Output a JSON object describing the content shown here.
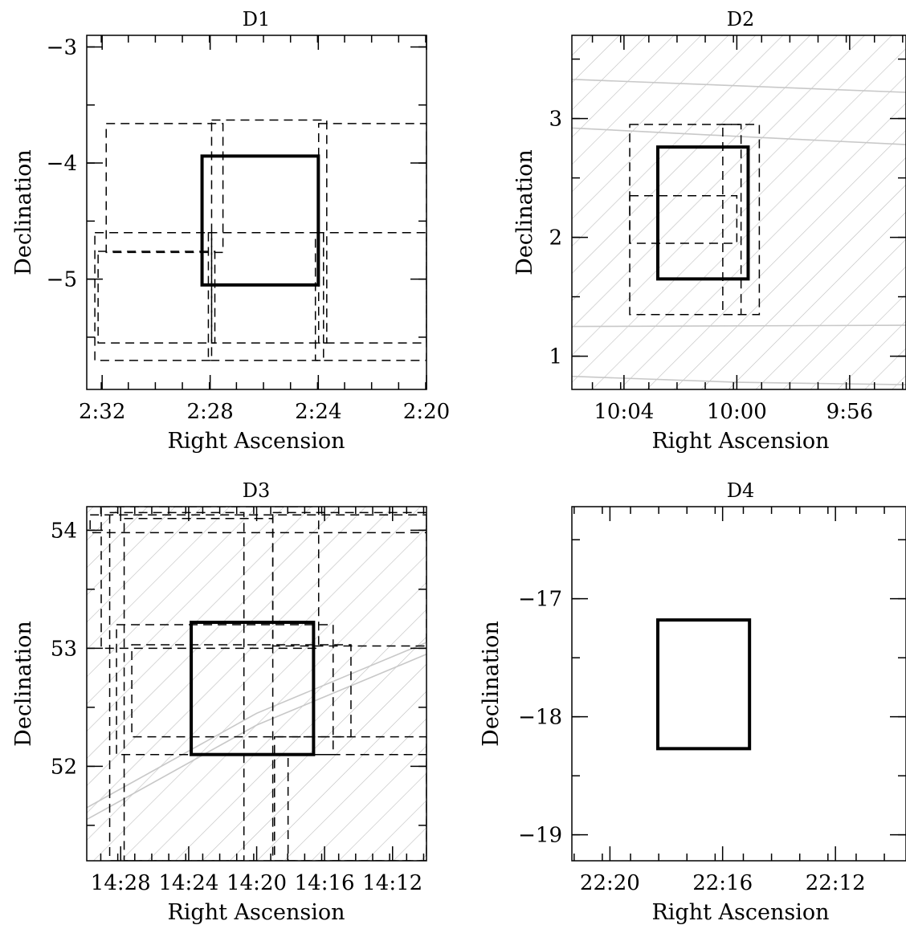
{
  "chart_data": [
    {
      "type": "scatter",
      "title": "D1",
      "xlabel": "Right Ascension",
      "ylabel": "Declination",
      "x_reversed": true,
      "xlim": [
        2.5428,
        2.3333
      ],
      "ylim": [
        -5.95,
        -2.9
      ],
      "xticks": [
        {
          "value": 2.5333,
          "label": "2:32"
        },
        {
          "value": 2.4667,
          "label": "2:28"
        },
        {
          "value": 2.4,
          "label": "2:24"
        },
        {
          "value": 2.3333,
          "label": "2:20"
        }
      ],
      "yticks": [
        {
          "value": -3,
          "label": "−3"
        },
        {
          "value": -4,
          "label": "−4"
        },
        {
          "value": -5,
          "label": "−5"
        }
      ],
      "minor_x_step": 0.01667,
      "minor_y_step": 0.5,
      "hatched": false,
      "curves": [],
      "main_field": {
        "ra": [
          2.4717,
          2.4
        ],
        "dec": [
          -5.05,
          -3.94
        ]
      },
      "dashed_rects": [
        {
          "ra": [
            2.5378,
            2.4658
          ],
          "dec": [
            -5.7,
            -4.6
          ]
        },
        {
          "ra": [
            2.5358,
            2.4638
          ],
          "dec": [
            -5.55,
            -4.76
          ]
        },
        {
          "ra": [
            2.5308,
            2.4588
          ],
          "dec": [
            -4.77,
            -3.66
          ]
        },
        {
          "ra": [
            2.4678,
            2.3968
          ],
          "dec": [
            -5.7,
            -4.6
          ]
        },
        {
          "ra": [
            2.4658,
            2.3948
          ],
          "dec": [
            -5.55,
            -3.63
          ]
        },
        {
          "ra": [
            2.4018,
            2.3333
          ],
          "dec": [
            -5.7,
            -4.6
          ]
        },
        {
          "ra": [
            2.3998,
            2.3333
          ],
          "dec": [
            -5.55,
            -3.66
          ]
        }
      ]
    },
    {
      "type": "scatter",
      "title": "D2",
      "xlabel": "Right Ascension",
      "ylabel": "Declination",
      "x_reversed": true,
      "xlim": [
        10.0975,
        9.9
      ],
      "ylim": [
        0.72,
        3.7
      ],
      "xticks": [
        {
          "value": 10.0667,
          "label": "10:04"
        },
        {
          "value": 10.0,
          "label": "10:00"
        },
        {
          "value": 9.9333,
          "label": "9:56"
        }
      ],
      "yticks": [
        {
          "value": 1,
          "label": "1"
        },
        {
          "value": 2,
          "label": "2"
        },
        {
          "value": 3,
          "label": "3"
        }
      ],
      "minor_x_step": 0.01667,
      "minor_y_step": 0.5,
      "hatched": true,
      "curves": [
        {
          "points": [
            [
              10.0975,
              3.33
            ],
            [
              9.9,
              3.22
            ]
          ]
        },
        {
          "points": [
            [
              10.0975,
              2.92
            ],
            [
              10.0,
              2.85
            ],
            [
              9.9,
              2.78
            ]
          ]
        },
        {
          "points": [
            [
              10.0975,
              1.25
            ],
            [
              9.9,
              1.26
            ]
          ]
        },
        {
          "points": [
            [
              10.0975,
              0.83
            ],
            [
              10.0,
              0.78
            ],
            [
              9.9,
              0.76
            ]
          ]
        }
      ],
      "main_field": {
        "ra": [
          10.0467,
          9.9933
        ],
        "dec": [
          1.65,
          2.76
        ]
      },
      "dashed_rects": [
        {
          "ra": [
            10.0633,
            9.9867
          ],
          "dec": [
            1.35,
            2.95
          ]
        },
        {
          "ra": [
            10.0633,
            10.0
          ],
          "dec": [
            1.95,
            2.35
          ]
        },
        {
          "ra": [
            10.0083,
            9.9975
          ],
          "dec": [
            1.35,
            2.95
          ]
        }
      ]
    },
    {
      "type": "scatter",
      "title": "D3",
      "xlabel": "Right Ascension",
      "ylabel": "Declination",
      "x_reversed": true,
      "xlim": [
        14.5,
        14.1667
      ],
      "ylim": [
        51.2,
        54.2
      ],
      "xticks": [
        {
          "value": 14.4667,
          "label": "14:28"
        },
        {
          "value": 14.4,
          "label": "14:24"
        },
        {
          "value": 14.3333,
          "label": "14:20"
        },
        {
          "value": 14.2667,
          "label": "14:16"
        },
        {
          "value": 14.2,
          "label": "14:12"
        }
      ],
      "yticks": [
        {
          "value": 52,
          "label": "52"
        },
        {
          "value": 53,
          "label": "53"
        },
        {
          "value": 54,
          "label": "54"
        }
      ],
      "minor_x_step": 0.01667,
      "minor_y_step": 0.5,
      "hatched": true,
      "curves": [
        {
          "points": [
            [
              14.5,
              51.55
            ],
            [
              14.3333,
              52.35
            ],
            [
              14.1667,
              52.95
            ]
          ]
        },
        {
          "points": [
            [
              14.5,
              51.65
            ],
            [
              14.3333,
              52.45
            ],
            [
              14.1667,
              53.05
            ]
          ]
        }
      ],
      "main_field": {
        "ra": [
          14.3975,
          14.2775
        ],
        "dec": [
          52.1,
          53.22
        ]
      },
      "dashed_rects": [
        {
          "ra": [
            14.4708,
            14.2583
          ],
          "dec": [
            52.1,
            53.2
          ]
        },
        {
          "ra": [
            14.4558,
            14.2408
          ],
          "dec": [
            52.25,
            53.03
          ]
        },
        {
          "ra": [
            14.4775,
            14.3458
          ],
          "dec": [
            51.2,
            54.15
          ]
        },
        {
          "ra": [
            14.4633,
            14.3175
          ],
          "dec": [
            51.2,
            54.1
          ]
        },
        {
          "ra": [
            14.4858,
            14.2725
          ],
          "dec": [
            53.0,
            54.2
          ]
        },
        {
          "ra": [
            14.3175,
            14.1667
          ],
          "dec": [
            53.02,
            54.15
          ]
        },
        {
          "ra": [
            14.3158,
            14.1667
          ],
          "dec": [
            51.2,
            52.25
          ]
        },
        {
          "ra": [
            14.3025,
            14.1667
          ],
          "dec": [
            51.2,
            52.1
          ]
        },
        {
          "ra": [
            14.4967,
            14.1667
          ],
          "dec": [
            53.98,
            54.13
          ]
        }
      ]
    },
    {
      "type": "scatter",
      "title": "D4",
      "xlabel": "Right Ascension",
      "ylabel": "Declination",
      "x_reversed": true,
      "xlim": [
        22.3558,
        22.1583
      ],
      "ylim": [
        -19.22,
        -16.22
      ],
      "xticks": [
        {
          "value": 22.3333,
          "label": "22:20"
        },
        {
          "value": 22.2667,
          "label": "22:16"
        },
        {
          "value": 22.2,
          "label": "22:12"
        }
      ],
      "yticks": [
        {
          "value": -17,
          "label": "−17"
        },
        {
          "value": -18,
          "label": "−18"
        },
        {
          "value": -19,
          "label": "−19"
        }
      ],
      "minor_x_step": 0.01667,
      "minor_y_step": 0.5,
      "hatched": false,
      "curves": [],
      "main_field": {
        "ra": [
          22.305,
          22.2508
        ],
        "dec": [
          -18.27,
          -17.18
        ]
      },
      "dashed_rects": []
    }
  ]
}
